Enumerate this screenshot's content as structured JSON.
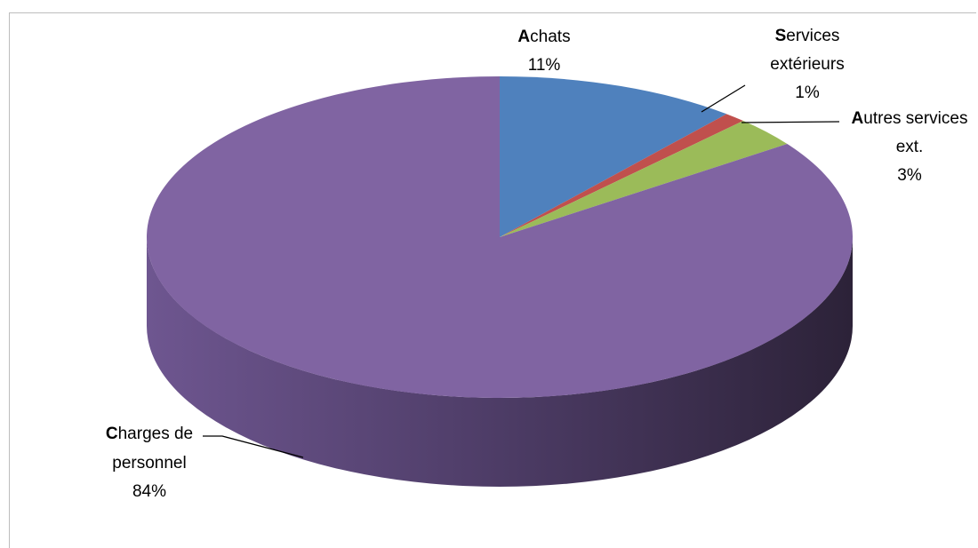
{
  "chart_data": {
    "type": "pie",
    "title": "",
    "three_d": true,
    "slices": [
      {
        "key": "achats",
        "label_first": "A",
        "label_rest": "chats",
        "label_line2": "",
        "value": 11,
        "value_label": "11%",
        "color": "#4f81bd"
      },
      {
        "key": "services_ext",
        "label_first": "S",
        "label_rest": "ervices",
        "label_line2": "extérieurs",
        "value": 1,
        "value_label": "1%",
        "color": "#c0504d"
      },
      {
        "key": "autres",
        "label_first": "A",
        "label_rest": "utres services",
        "label_line2": "ext.",
        "value": 3,
        "value_label": "3%",
        "color": "#9bbb59"
      },
      {
        "key": "personnel",
        "label_first": "C",
        "label_rest": "harges de",
        "label_line2": "personnel",
        "value": 84,
        "value_label": "84%",
        "color": "#8064a2"
      }
    ]
  }
}
